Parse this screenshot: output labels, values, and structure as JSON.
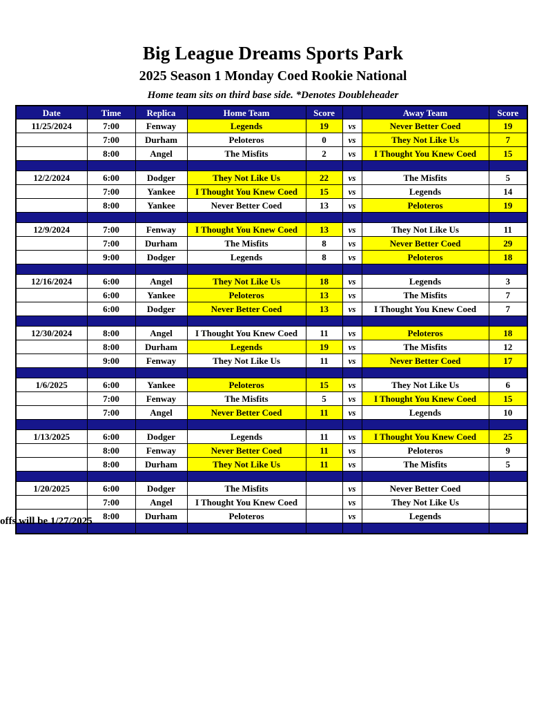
{
  "page": {
    "title": "Big League Dreams Sports Park",
    "subtitle": "2025 Season 1 Monday Coed Rookie National",
    "note": "Home team sits on third base side.  *Denotes Doubleheader",
    "footer": "offs will be 1/27/2025"
  },
  "colors": {
    "header_bg": "#16168C",
    "header_text": "#FFFFFF",
    "highlight": "#FFFF00",
    "border": "#000000"
  },
  "table": {
    "headers": [
      "Date",
      "Time",
      "Replica",
      "Home Team",
      "Score",
      "",
      "Away Team",
      "Score"
    ],
    "vs_label": "vs",
    "blocks": [
      {
        "date": "11/25/2024",
        "games": [
          {
            "time": "7:00",
            "replica": "Fenway",
            "home": "Legends",
            "home_score": "19",
            "home_hl": true,
            "away": "Never Better Coed",
            "away_score": "19",
            "away_hl": true
          },
          {
            "time": "7:00",
            "replica": "Durham",
            "home": "Peloteros",
            "home_score": "0",
            "home_hl": false,
            "away": "They Not Like Us",
            "away_score": "7",
            "away_hl": true
          },
          {
            "time": "8:00",
            "replica": "Angel",
            "home": "The Misfits",
            "home_score": "2",
            "home_hl": false,
            "away": "I Thought You Knew Coed",
            "away_score": "15",
            "away_hl": true
          }
        ]
      },
      {
        "date": "12/2/2024",
        "games": [
          {
            "time": "6:00",
            "replica": "Dodger",
            "home": "They Not Like Us",
            "home_score": "22",
            "home_hl": true,
            "away": "The Misfits",
            "away_score": "5",
            "away_hl": false
          },
          {
            "time": "7:00",
            "replica": "Yankee",
            "home": "I Thought You Knew Coed",
            "home_score": "15",
            "home_hl": true,
            "away": "Legends",
            "away_score": "14",
            "away_hl": false
          },
          {
            "time": "8:00",
            "replica": "Yankee",
            "home": "Never Better Coed",
            "home_score": "13",
            "home_hl": false,
            "away": "Peloteros",
            "away_score": "19",
            "away_hl": true
          }
        ]
      },
      {
        "date": "12/9/2024",
        "games": [
          {
            "time": "7:00",
            "replica": "Fenway",
            "home": "I Thought You Knew Coed",
            "home_score": "13",
            "home_hl": true,
            "away": "They Not Like Us",
            "away_score": "11",
            "away_hl": false
          },
          {
            "time": "7:00",
            "replica": "Durham",
            "home": "The Misfits",
            "home_score": "8",
            "home_hl": false,
            "away": "Never Better Coed",
            "away_score": "29",
            "away_hl": true
          },
          {
            "time": "9:00",
            "replica": "Dodger",
            "home": "Legends",
            "home_score": "8",
            "home_hl": false,
            "away": "Peloteros",
            "away_score": "18",
            "away_hl": true
          }
        ]
      },
      {
        "date": "12/16/2024",
        "games": [
          {
            "time": "6:00",
            "replica": "Angel",
            "home": "They Not Like Us",
            "home_score": "18",
            "home_hl": true,
            "away": "Legends",
            "away_score": "3",
            "away_hl": false
          },
          {
            "time": "6:00",
            "replica": "Yankee",
            "home": "Peloteros",
            "home_score": "13",
            "home_hl": true,
            "away": "The Misfits",
            "away_score": "7",
            "away_hl": false
          },
          {
            "time": "6:00",
            "replica": "Dodger",
            "home": "Never Better Coed",
            "home_score": "13",
            "home_hl": true,
            "away": "I Thought You Knew Coed",
            "away_score": "7",
            "away_hl": false
          }
        ]
      },
      {
        "date": "12/30/2024",
        "games": [
          {
            "time": "8:00",
            "replica": "Angel",
            "home": "I Thought You Knew Coed",
            "home_score": "11",
            "home_hl": false,
            "away": "Peloteros",
            "away_score": "18",
            "away_hl": true
          },
          {
            "time": "8:00",
            "replica": "Durham",
            "home": "Legends",
            "home_score": "19",
            "home_hl": true,
            "away": "The Misfits",
            "away_score": "12",
            "away_hl": false
          },
          {
            "time": "9:00",
            "replica": "Fenway",
            "home": "They Not Like Us",
            "home_score": "11",
            "home_hl": false,
            "away": "Never Better Coed",
            "away_score": "17",
            "away_hl": true
          }
        ]
      },
      {
        "date": "1/6/2025",
        "games": [
          {
            "time": "6:00",
            "replica": "Yankee",
            "home": "Peloteros",
            "home_score": "15",
            "home_hl": true,
            "away": "They Not Like Us",
            "away_score": "6",
            "away_hl": false
          },
          {
            "time": "7:00",
            "replica": "Fenway",
            "home": "The Misfits",
            "home_score": "5",
            "home_hl": false,
            "away": "I Thought You Knew Coed",
            "away_score": "15",
            "away_hl": true
          },
          {
            "time": "7:00",
            "replica": "Angel",
            "home": "Never Better Coed",
            "home_score": "11",
            "home_hl": true,
            "away": "Legends",
            "away_score": "10",
            "away_hl": false
          }
        ]
      },
      {
        "date": "1/13/2025",
        "games": [
          {
            "time": "6:00",
            "replica": "Dodger",
            "home": "Legends",
            "home_score": "11",
            "home_hl": false,
            "away": "I Thought You Knew Coed",
            "away_score": "25",
            "away_hl": true
          },
          {
            "time": "8:00",
            "replica": "Fenway",
            "home": "Never Better Coed",
            "home_score": "11",
            "home_hl": true,
            "away": "Peloteros",
            "away_score": "9",
            "away_hl": false
          },
          {
            "time": "8:00",
            "replica": "Durham",
            "home": "They Not Like Us",
            "home_score": "11",
            "home_hl": true,
            "away": "The Misfits",
            "away_score": "5",
            "away_hl": false
          }
        ]
      },
      {
        "date": "1/20/2025",
        "games": [
          {
            "time": "6:00",
            "replica": "Dodger",
            "home": "The Misfits",
            "home_score": "",
            "home_hl": false,
            "away": "Never Better Coed",
            "away_score": "",
            "away_hl": false
          },
          {
            "time": "7:00",
            "replica": "Angel",
            "home": "I Thought You Knew Coed",
            "home_score": "",
            "home_hl": false,
            "away": "They Not Like Us",
            "away_score": "",
            "away_hl": false
          },
          {
            "time": "8:00",
            "replica": "Durham",
            "home": "Peloteros",
            "home_score": "",
            "home_hl": false,
            "away": "Legends",
            "away_score": "",
            "away_hl": false
          }
        ]
      }
    ]
  }
}
